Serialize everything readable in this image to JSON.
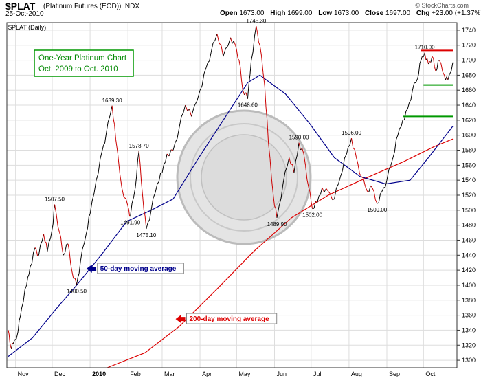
{
  "header": {
    "symbol": "$PLAT",
    "description": "(Platinum Futures (EOD))  INDX",
    "date": "25-Oct-2010",
    "open_label": "Open",
    "open": "1673.00",
    "high_label": "High",
    "high": "1699.00",
    "low_label": "Low",
    "low": "1673.00",
    "close_label": "Close",
    "close": "1697.00",
    "chg_label": "Chg",
    "chg": "+23.00 (+1.37%)",
    "credit": "© StockCharts.com"
  },
  "colors": {
    "up": "#000000",
    "down": "#cc0000",
    "ma50": "#00008b",
    "ma200": "#dd0000",
    "title_box": "#009900",
    "grid": "#dddddd",
    "support": "#009900",
    "resistance": "#dd0000"
  },
  "chart_data": {
    "type": "line",
    "panel_label": "$PLAT (Daily)",
    "title": "One-Year Platinum Chart",
    "subtitle": "Oct. 2009 to Oct. 2010",
    "ylim": [
      1290,
      1750
    ],
    "y_ticks": [
      1300,
      1320,
      1340,
      1360,
      1380,
      1400,
      1420,
      1440,
      1460,
      1480,
      1500,
      1520,
      1540,
      1560,
      1580,
      1600,
      1620,
      1640,
      1660,
      1680,
      1700,
      1720,
      1740
    ],
    "x_range": [
      "2009-10-26",
      "2010-10-25"
    ],
    "x_ticks": [
      {
        "date": "2009-11-01",
        "label": "Nov",
        "bold": false
      },
      {
        "date": "2009-12-01",
        "label": "Dec",
        "bold": false
      },
      {
        "date": "2010-01-01",
        "label": "2010",
        "bold": true
      },
      {
        "date": "2010-02-01",
        "label": "Feb",
        "bold": false
      },
      {
        "date": "2010-03-01",
        "label": "Mar",
        "bold": false
      },
      {
        "date": "2010-04-01",
        "label": "Apr",
        "bold": false
      },
      {
        "date": "2010-05-01",
        "label": "May",
        "bold": false
      },
      {
        "date": "2010-06-01",
        "label": "Jun",
        "bold": false
      },
      {
        "date": "2010-07-01",
        "label": "Jul",
        "bold": false
      },
      {
        "date": "2010-08-01",
        "label": "Aug",
        "bold": false
      },
      {
        "date": "2010-09-01",
        "label": "Sep",
        "bold": false
      },
      {
        "date": "2010-10-01",
        "label": "Oct",
        "bold": false
      }
    ],
    "price_keypoints": [
      [
        "2009-10-26",
        1340
      ],
      [
        "2009-10-28",
        1318
      ],
      [
        "2009-10-30",
        1322
      ],
      [
        "2009-11-03",
        1338
      ],
      [
        "2009-11-06",
        1370
      ],
      [
        "2009-11-10",
        1400
      ],
      [
        "2009-11-13",
        1425
      ],
      [
        "2009-11-17",
        1450
      ],
      [
        "2009-11-20",
        1440
      ],
      [
        "2009-11-24",
        1468
      ],
      [
        "2009-11-27",
        1445
      ],
      [
        "2009-12-01",
        1475
      ],
      [
        "2009-12-03",
        1507.5
      ],
      [
        "2009-12-07",
        1470
      ],
      [
        "2009-12-10",
        1440
      ],
      [
        "2009-12-14",
        1455
      ],
      [
        "2009-12-17",
        1420
      ],
      [
        "2009-12-21",
        1400.5
      ],
      [
        "2009-12-24",
        1430
      ],
      [
        "2009-12-29",
        1470
      ],
      [
        "2010-01-01",
        1495
      ],
      [
        "2010-01-06",
        1540
      ],
      [
        "2010-01-11",
        1580
      ],
      [
        "2010-01-14",
        1600
      ],
      [
        "2010-01-19",
        1639.3
      ],
      [
        "2010-01-22",
        1595
      ],
      [
        "2010-01-27",
        1530
      ],
      [
        "2010-02-01",
        1505
      ],
      [
        "2010-02-03",
        1491.9
      ],
      [
        "2010-02-07",
        1530
      ],
      [
        "2010-02-10",
        1578.7
      ],
      [
        "2010-02-13",
        1520
      ],
      [
        "2010-02-16",
        1475.1
      ],
      [
        "2010-02-20",
        1500
      ],
      [
        "2010-02-25",
        1535
      ],
      [
        "2010-03-01",
        1550
      ],
      [
        "2010-03-05",
        1575
      ],
      [
        "2010-03-10",
        1580
      ],
      [
        "2010-03-15",
        1610
      ],
      [
        "2010-03-20",
        1640
      ],
      [
        "2010-03-25",
        1625
      ],
      [
        "2010-04-01",
        1660
      ],
      [
        "2010-04-06",
        1690
      ],
      [
        "2010-04-10",
        1710
      ],
      [
        "2010-04-15",
        1735
      ],
      [
        "2010-04-20",
        1705
      ],
      [
        "2010-04-26",
        1730
      ],
      [
        "2010-04-30",
        1720
      ],
      [
        "2010-05-03",
        1700
      ],
      [
        "2010-05-06",
        1660
      ],
      [
        "2010-05-10",
        1648.6
      ],
      [
        "2010-05-13",
        1700
      ],
      [
        "2010-05-17",
        1745.3
      ],
      [
        "2010-05-20",
        1720
      ],
      [
        "2010-05-24",
        1665
      ],
      [
        "2010-05-27",
        1590
      ],
      [
        "2010-05-31",
        1520
      ],
      [
        "2010-06-03",
        1489.9
      ],
      [
        "2010-06-08",
        1535
      ],
      [
        "2010-06-13",
        1570
      ],
      [
        "2010-06-17",
        1550
      ],
      [
        "2010-06-21",
        1590
      ],
      [
        "2010-06-25",
        1575
      ],
      [
        "2010-06-29",
        1530
      ],
      [
        "2010-07-02",
        1502
      ],
      [
        "2010-07-06",
        1510
      ],
      [
        "2010-07-10",
        1530
      ],
      [
        "2010-07-15",
        1525
      ],
      [
        "2010-07-20",
        1515
      ],
      [
        "2010-07-25",
        1545
      ],
      [
        "2010-07-30",
        1575
      ],
      [
        "2010-08-03",
        1596
      ],
      [
        "2010-08-07",
        1570
      ],
      [
        "2010-08-11",
        1545
      ],
      [
        "2010-08-16",
        1525
      ],
      [
        "2010-08-20",
        1530
      ],
      [
        "2010-08-24",
        1509
      ],
      [
        "2010-08-28",
        1525
      ],
      [
        "2010-09-01",
        1540
      ],
      [
        "2010-09-06",
        1570
      ],
      [
        "2010-09-10",
        1600
      ],
      [
        "2010-09-14",
        1620
      ],
      [
        "2010-09-18",
        1635
      ],
      [
        "2010-09-22",
        1660
      ],
      [
        "2010-09-26",
        1675
      ],
      [
        "2010-09-29",
        1700
      ],
      [
        "2010-10-02",
        1710
      ],
      [
        "2010-10-05",
        1695
      ],
      [
        "2010-10-08",
        1705
      ],
      [
        "2010-10-11",
        1685
      ],
      [
        "2010-10-14",
        1700
      ],
      [
        "2010-10-18",
        1680
      ],
      [
        "2010-10-21",
        1674
      ],
      [
        "2010-10-25",
        1697
      ]
    ],
    "ma50": [
      [
        "2009-10-26",
        1305
      ],
      [
        "2009-11-15",
        1330
      ],
      [
        "2009-12-05",
        1370
      ],
      [
        "2009-12-21",
        1400
      ],
      [
        "2010-01-10",
        1440
      ],
      [
        "2010-01-31",
        1485
      ],
      [
        "2010-02-20",
        1500
      ],
      [
        "2010-03-10",
        1515
      ],
      [
        "2010-03-31",
        1570
      ],
      [
        "2010-04-20",
        1620
      ],
      [
        "2010-05-10",
        1670
      ],
      [
        "2010-05-20",
        1680
      ],
      [
        "2010-06-10",
        1655
      ],
      [
        "2010-06-30",
        1615
      ],
      [
        "2010-07-20",
        1570
      ],
      [
        "2010-08-10",
        1545
      ],
      [
        "2010-08-31",
        1535
      ],
      [
        "2010-09-20",
        1540
      ],
      [
        "2010-10-05",
        1570
      ],
      [
        "2010-10-25",
        1612
      ]
    ],
    "ma200": [
      [
        "2010-01-15",
        1290
      ],
      [
        "2010-02-15",
        1310
      ],
      [
        "2010-03-15",
        1345
      ],
      [
        "2010-04-15",
        1395
      ],
      [
        "2010-05-15",
        1445
      ],
      [
        "2010-06-15",
        1490
      ],
      [
        "2010-07-15",
        1520
      ],
      [
        "2010-08-15",
        1543
      ],
      [
        "2010-09-15",
        1565
      ],
      [
        "2010-10-10",
        1585
      ],
      [
        "2010-10-25",
        1595
      ]
    ],
    "price_labels": [
      {
        "date": "2009-12-03",
        "value": 1507.5,
        "text": "1507.50",
        "pos": "above"
      },
      {
        "date": "2009-12-21",
        "value": 1400.5,
        "text": "1400.50",
        "pos": "below"
      },
      {
        "date": "2010-01-19",
        "value": 1639.3,
        "text": "1639.30",
        "pos": "above"
      },
      {
        "date": "2010-02-03",
        "value": 1491.9,
        "text": "1491.90",
        "pos": "below"
      },
      {
        "date": "2010-02-10",
        "value": 1578.7,
        "text": "1578.70",
        "pos": "above"
      },
      {
        "date": "2010-02-16",
        "value": 1475.1,
        "text": "1475.10",
        "pos": "below"
      },
      {
        "date": "2010-05-17",
        "value": 1745.3,
        "text": "1745.30",
        "pos": "above"
      },
      {
        "date": "2010-05-10",
        "value": 1648.6,
        "text": "1648.60",
        "pos": "below"
      },
      {
        "date": "2010-06-03",
        "value": 1489.9,
        "text": "1489.90",
        "pos": "below"
      },
      {
        "date": "2010-06-21",
        "value": 1590.0,
        "text": "1590.00",
        "pos": "above"
      },
      {
        "date": "2010-07-02",
        "value": 1502.0,
        "text": "1502.00",
        "pos": "below"
      },
      {
        "date": "2010-08-03",
        "value": 1596.0,
        "text": "1596.00",
        "pos": "above"
      },
      {
        "date": "2010-08-24",
        "value": 1509.0,
        "text": "1509.00",
        "pos": "below"
      },
      {
        "date": "2010-10-02",
        "value": 1710.0,
        "text": "1710.00",
        "pos": "above"
      }
    ],
    "hlines": [
      {
        "value": 1713,
        "from": "2010-09-29",
        "to": "2010-10-25",
        "color": "#dd0000"
      },
      {
        "value": 1667,
        "from": "2010-10-01",
        "to": "2010-10-25",
        "color": "#009900"
      },
      {
        "value": 1625,
        "from": "2010-09-14",
        "to": "2010-10-25",
        "color": "#009900"
      }
    ],
    "annotations": [
      {
        "text": "50-day moving average",
        "date": "2009-12-29",
        "value": 1422,
        "color": "#00008b"
      },
      {
        "text": "200-day moving average",
        "date": "2010-03-12",
        "value": 1355,
        "color": "#dd0000"
      }
    ]
  }
}
